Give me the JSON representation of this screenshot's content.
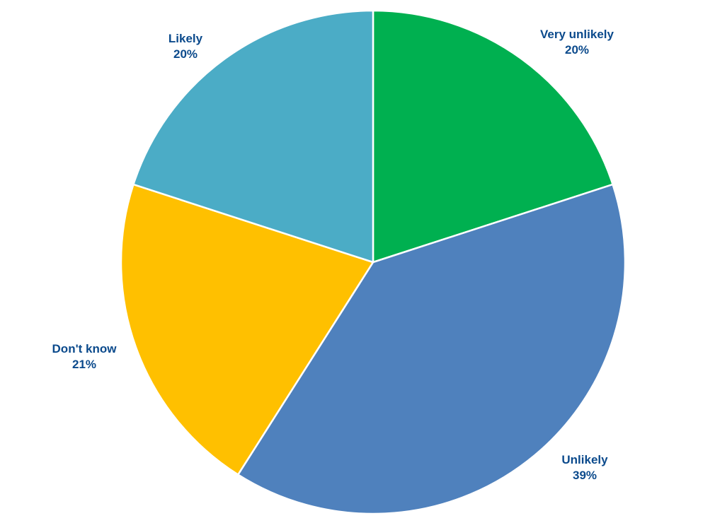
{
  "chart_data": {
    "type": "pie",
    "title": "",
    "start": "12 o'clock",
    "direction": "clockwise",
    "label_color": "#0B4A8C",
    "slices": [
      {
        "label": "Very unlikely",
        "value": 20,
        "value_label": "20%",
        "color": "#00B050"
      },
      {
        "label": "Unlikely",
        "value": 39,
        "value_label": "39%",
        "color": "#4F81BD"
      },
      {
        "label": "Don't know",
        "value": 21,
        "value_label": "21%",
        "color": "#FFC000"
      },
      {
        "label": "Likely",
        "value": 20,
        "value_label": "20%",
        "color": "#4BACC6"
      }
    ]
  }
}
